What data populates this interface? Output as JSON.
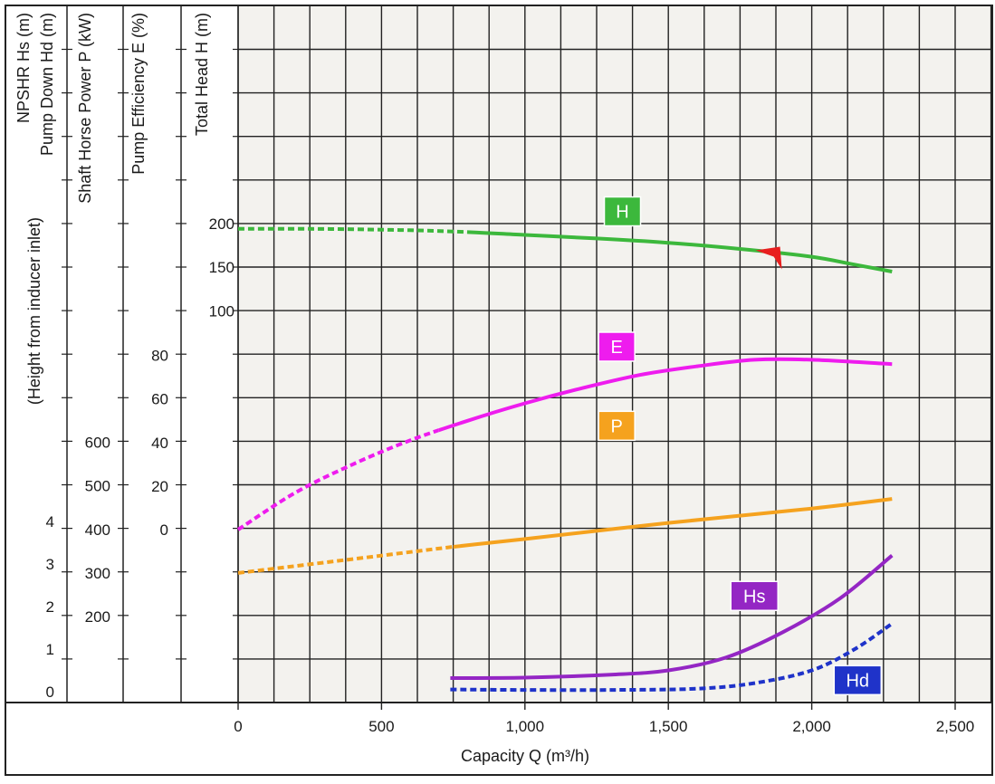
{
  "chart_data": {
    "type": "line",
    "xlabel": "Capacity Q (m³/h)",
    "x_ticks": [
      "0",
      "500",
      "1,000",
      "1,500",
      "2,000",
      "2,500"
    ],
    "xlim": [
      0,
      2600
    ],
    "grid": true,
    "axes": [
      {
        "id": "nps",
        "title": "NPSHR Hs (m)",
        "title2": "Pump Down Hd (m)",
        "title3": "(Height from inducer inlet)",
        "ticks": [
          {
            "label": "0",
            "value": 0
          },
          {
            "label": "1",
            "value": 1
          },
          {
            "label": "2",
            "value": 2
          },
          {
            "label": "3",
            "value": 3
          },
          {
            "label": "4",
            "value": 4
          }
        ]
      },
      {
        "id": "power",
        "title": "Shaft Horse Power P (kW)",
        "ticks": [
          {
            "label": "200",
            "value": 200
          },
          {
            "label": "300",
            "value": 300
          },
          {
            "label": "400",
            "value": 400
          },
          {
            "label": "500",
            "value": 500
          },
          {
            "label": "600",
            "value": 600
          }
        ]
      },
      {
        "id": "eff",
        "title": "Pump Efficiency E (%)",
        "ticks": [
          {
            "label": "0",
            "value": 0
          },
          {
            "label": "20",
            "value": 20
          },
          {
            "label": "40",
            "value": 40
          },
          {
            "label": "60",
            "value": 60
          },
          {
            "label": "80",
            "value": 80
          }
        ]
      },
      {
        "id": "head",
        "title": "Total Head  H (m)",
        "ticks": [
          {
            "label": "100",
            "value": 100
          },
          {
            "label": "150",
            "value": 150
          },
          {
            "label": "200",
            "value": 200
          }
        ]
      }
    ],
    "series": [
      {
        "name": "H",
        "axis": "head",
        "color": "#3cb83c",
        "label_x": 1340,
        "label_y": 214,
        "dashed_until": 800,
        "points": [
          [
            0,
            194
          ],
          [
            250,
            194
          ],
          [
            500,
            193
          ],
          [
            750,
            191
          ],
          [
            1000,
            187
          ],
          [
            1250,
            183
          ],
          [
            1500,
            178
          ],
          [
            1750,
            171
          ],
          [
            2000,
            162
          ],
          [
            2150,
            153
          ],
          [
            2280,
            145
          ]
        ]
      },
      {
        "name": "E",
        "axis": "eff",
        "color": "#ee1cee",
        "label_x": 1320,
        "label_y": 84,
        "dashed_until": 700,
        "points": [
          [
            0,
            0
          ],
          [
            200,
            17
          ],
          [
            400,
            30
          ],
          [
            600,
            41
          ],
          [
            800,
            50
          ],
          [
            1000,
            58
          ],
          [
            1200,
            65
          ],
          [
            1400,
            71
          ],
          [
            1600,
            75
          ],
          [
            1800,
            78
          ],
          [
            2000,
            78
          ],
          [
            2280,
            76
          ]
        ]
      },
      {
        "name": "P",
        "axis": "power",
        "color": "#f5a21e",
        "label_x": 1320,
        "label_y": 638,
        "dashed_until": 750,
        "points": [
          [
            0,
            300
          ],
          [
            500,
            340
          ],
          [
            750,
            360
          ],
          [
            1000,
            378
          ],
          [
            1500,
            415
          ],
          [
            2000,
            448
          ],
          [
            2280,
            470
          ]
        ]
      },
      {
        "name": "Hs",
        "axis": "nps",
        "color": "#9426c4",
        "label_x": 1800,
        "label_y": 2.25,
        "dashed_until": 0,
        "points": [
          [
            740,
            0.32
          ],
          [
            1000,
            0.33
          ],
          [
            1300,
            0.4
          ],
          [
            1500,
            0.5
          ],
          [
            1700,
            0.8
          ],
          [
            1900,
            1.4
          ],
          [
            2100,
            2.2
          ],
          [
            2280,
            3.2
          ]
        ]
      },
      {
        "name": "Hd",
        "axis": "nps",
        "color": "#1f33c9",
        "label_x": 2160,
        "label_y": 0.27,
        "dashed_until": 2400,
        "points": [
          [
            740,
            0.05
          ],
          [
            1000,
            0.04
          ],
          [
            1300,
            0.04
          ],
          [
            1600,
            0.07
          ],
          [
            1800,
            0.2
          ],
          [
            2000,
            0.5
          ],
          [
            2150,
            1.0
          ],
          [
            2280,
            1.6
          ]
        ]
      }
    ],
    "annotations": [
      {
        "type": "arrow-marker",
        "color": "#e81f1f",
        "x": 1880,
        "y": 160,
        "axis": "head"
      }
    ]
  }
}
